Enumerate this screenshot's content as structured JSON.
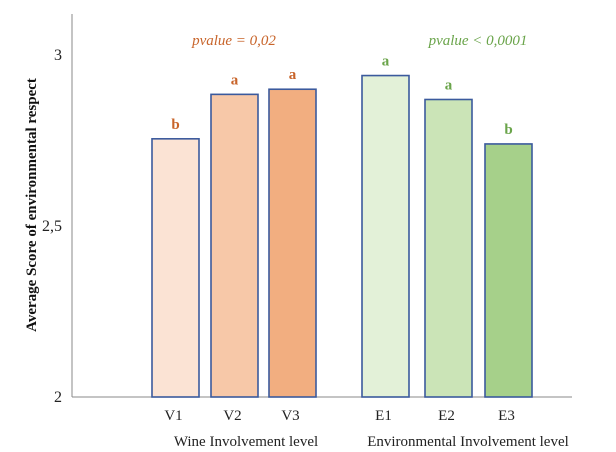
{
  "chart_data": {
    "type": "bar",
    "ylabel": "Average Score of environmental respect",
    "ylim": [
      2,
      3.12
    ],
    "yticks": [
      {
        "value": 2,
        "label": "2"
      },
      {
        "value": 2.5,
        "label": "2,5"
      },
      {
        "value": 3,
        "label": "3"
      }
    ],
    "grid": false,
    "groups": [
      {
        "label": "Wine Involvement level",
        "pvalue": "pvalue = 0,02",
        "color": "#c8642a",
        "bars": [
          {
            "category": "V1",
            "value": 2.755,
            "letter": "b",
            "fill": "#fbe3d4"
          },
          {
            "category": "V2",
            "value": 2.885,
            "letter": "a",
            "fill": "#f7c8a8"
          },
          {
            "category": "V3",
            "value": 2.9,
            "letter": "a",
            "fill": "#f2ae80"
          }
        ]
      },
      {
        "label": "Environmental Involvement level",
        "pvalue": "pvalue < 0,0001",
        "color": "#6aa44a",
        "bars": [
          {
            "category": "E1",
            "value": 2.94,
            "letter": "a",
            "fill": "#e3f1d8"
          },
          {
            "category": "E2",
            "value": 2.87,
            "letter": "a",
            "fill": "#cbe4b7"
          },
          {
            "category": "E3",
            "value": 2.74,
            "letter": "b",
            "fill": "#a6d08a"
          }
        ]
      }
    ]
  }
}
